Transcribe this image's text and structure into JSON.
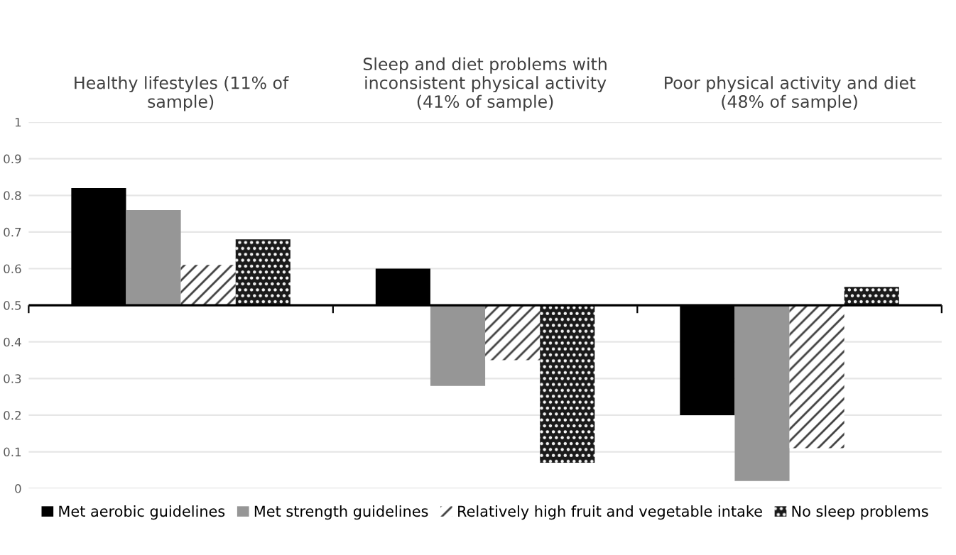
{
  "chart_data": {
    "type": "bar",
    "categories": [
      "Healthy lifestyles (11% of sample)",
      "Sleep and diet problems with inconsistent physical activity (41% of sample)",
      "Poor physical activity and diet (48% of sample)"
    ],
    "series": [
      {
        "name": "Met aerobic guidelines",
        "color": "#000000",
        "base": [
          0.5,
          0.5,
          0.5
        ],
        "values": [
          0.32,
          0.1,
          -0.3
        ]
      },
      {
        "name": "Met strength guidelines",
        "color": "#969696",
        "base": [
          0.5,
          0.5,
          0.5
        ],
        "values": [
          0.26,
          -0.22,
          -0.48
        ]
      },
      {
        "name": "Relatively high fruit and vegetable intake",
        "color": "#404040",
        "base": [
          0.5,
          0.5,
          0.5
        ],
        "values": [
          0.11,
          -0.15,
          -0.39
        ]
      },
      {
        "name": "No sleep problems",
        "color": "#1a1a1a",
        "base": [
          0.5,
          0.5,
          0.5
        ],
        "values": [
          0.18,
          -0.43,
          0.05
        ]
      }
    ],
    "ylim": [
      0,
      1
    ],
    "yticks": [
      0,
      0.1,
      0.2,
      0.3,
      0.4,
      0.5,
      0.6,
      0.7,
      0.8,
      0.9,
      1
    ],
    "ref_lines": [
      {
        "axis": "y",
        "value": 0.5,
        "color": "#000000"
      }
    ],
    "grid": "y",
    "legend": "bottom"
  }
}
